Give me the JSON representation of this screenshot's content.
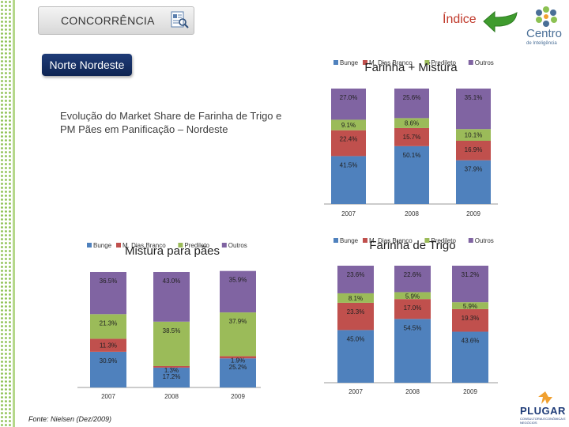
{
  "header": {
    "section_title": "CONCORRÊNCIA",
    "index_link": "Índice",
    "region": "Norte Nordeste",
    "logo_line1": "Centro",
    "logo_line2": "de Inteligência",
    "brand": "PLUGAR",
    "brand_sub": "CONSULTORIA ECONÔMICA E NEGÓCIOS"
  },
  "subtitle": "Evolução do Market Share de Farinha de Trigo e PM Pães em Panificação – Nordeste",
  "source": "Fonte: Nielsen (Dez/2009)",
  "colors": {
    "Bunge": "#4f81bd",
    "M. Dias Branco": "#c0504d",
    "Predileto": "#9bbb59",
    "Outros": "#8064a2"
  },
  "chart_data": [
    {
      "type": "bar",
      "stacked": true,
      "title": "Farinha + Mistura",
      "categories": [
        "2007",
        "2008",
        "2009"
      ],
      "series": [
        {
          "name": "Bunge",
          "values": [
            41.5,
            50.1,
            37.9
          ],
          "labels": [
            "41.5%",
            "50.1%",
            "37.9%"
          ]
        },
        {
          "name": "M. Dias Branco",
          "values": [
            22.4,
            15.7,
            16.9
          ],
          "labels": [
            "22.4%",
            "15.7%",
            "16.9%"
          ]
        },
        {
          "name": "Predileto",
          "values": [
            9.1,
            8.6,
            10.1
          ],
          "labels": [
            "9.1%",
            "8.6%",
            "10.1%"
          ]
        },
        {
          "name": "Outros",
          "values": [
            27.0,
            25.6,
            35.1
          ],
          "labels": [
            "27.0%",
            "25.6%",
            "35.1%"
          ]
        }
      ],
      "ylim": [
        0,
        100
      ]
    },
    {
      "type": "bar",
      "stacked": true,
      "title": "Mistura para pães",
      "categories": [
        "2007",
        "2008",
        "2009"
      ],
      "series": [
        {
          "name": "Bunge",
          "values": [
            30.9,
            17.2,
            25.2
          ],
          "labels": [
            "30.9%",
            "17.2%",
            "25.2%"
          ]
        },
        {
          "name": "M. Dias Branco",
          "values": [
            11.3,
            1.3,
            1.9
          ],
          "labels": [
            "11.3%",
            "1.3%",
            "1.9%"
          ]
        },
        {
          "name": "Predileto",
          "values": [
            21.3,
            38.5,
            37.9
          ],
          "labels": [
            "21.3%",
            "38.5%",
            "37.9%"
          ]
        },
        {
          "name": "Outros",
          "values": [
            36.5,
            43.0,
            35.9
          ],
          "labels": [
            "36.5%",
            "43.0%",
            "35.9%"
          ]
        }
      ],
      "ylim": [
        0,
        100
      ]
    },
    {
      "type": "bar",
      "stacked": true,
      "title": "Farinha de Trigo",
      "categories": [
        "2007",
        "2008",
        "2009"
      ],
      "series": [
        {
          "name": "Bunge",
          "values": [
            45.0,
            54.5,
            43.6
          ],
          "labels": [
            "45.0%",
            "54.5%",
            "43.6%"
          ]
        },
        {
          "name": "M. Dias Branco",
          "values": [
            23.3,
            17.0,
            19.3
          ],
          "labels": [
            "23.3%",
            "17.0%",
            "19.3%"
          ]
        },
        {
          "name": "Predileto",
          "values": [
            8.1,
            5.9,
            5.9
          ],
          "labels": [
            "8.1%",
            "5.9%",
            "5.9%"
          ]
        },
        {
          "name": "Outros",
          "values": [
            23.6,
            22.6,
            31.2
          ],
          "labels": [
            "23.6%",
            "22.6%",
            "31.2%"
          ]
        }
      ],
      "ylim": [
        0,
        100
      ]
    }
  ]
}
